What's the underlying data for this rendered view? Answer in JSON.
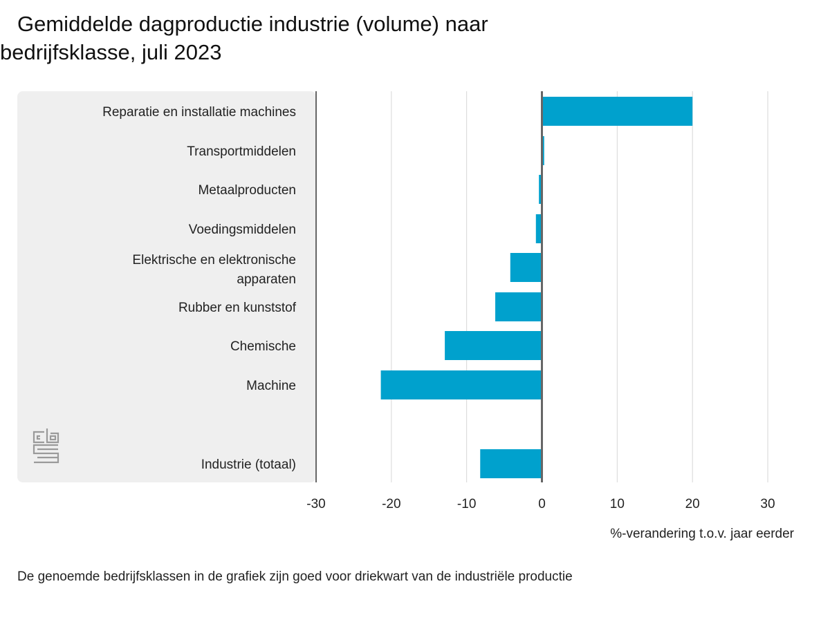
{
  "title_line1": "Gemiddelde dagproductie industrie (volume) naar",
  "title_line2": "bedrijfsklasse, juli 2023",
  "footnote": "De genoemde bedrijfsklassen in de grafiek zijn goed voor driekwart van de industriële productie",
  "logo_text": "cbs",
  "colors": {
    "bar": "#00a1cd",
    "label_panel": "#efefef",
    "grid": "#d6d6d6",
    "axis": "#666666"
  },
  "chart_data": {
    "type": "bar",
    "orientation": "horizontal",
    "categories": [
      "Reparatie en installatie machines",
      "Transportmiddelen",
      "Metaalproducten",
      "Voedingsmiddelen",
      "Elektrische en elektronische apparaten",
      "Rubber en kunststof",
      "Chemische",
      "Machine",
      "Industrie (totaal)"
    ],
    "values": [
      20.0,
      0.3,
      -0.4,
      -0.8,
      -4.2,
      -6.2,
      -12.9,
      -21.4,
      -8.2
    ],
    "xlabel": "%-verandering t.o.v. jaar eerder",
    "xlim": [
      -30,
      30
    ],
    "xticks": [
      "-30",
      "-20",
      "-10",
      "0",
      "10",
      "20",
      "30"
    ],
    "grid": true,
    "legend": "none"
  }
}
